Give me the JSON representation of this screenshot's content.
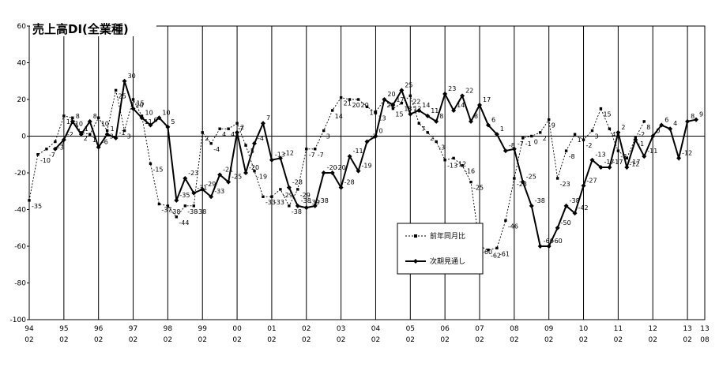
{
  "chart_data": {
    "type": "line",
    "title": "売上高DI(全業種)",
    "ylim": [
      -100,
      60
    ],
    "yticks": [
      60,
      40,
      20,
      0,
      -20,
      -40,
      -60,
      -80,
      -100
    ],
    "year_ticks": [
      {
        "year": "94",
        "month": "02"
      },
      {
        "year": "95",
        "month": "02"
      },
      {
        "year": "96",
        "month": "02"
      },
      {
        "year": "97",
        "month": "02"
      },
      {
        "year": "98",
        "month": "02"
      },
      {
        "year": "99",
        "month": "02"
      },
      {
        "year": "00",
        "month": "02"
      },
      {
        "year": "01",
        "month": "02"
      },
      {
        "year": "02",
        "month": "02"
      },
      {
        "year": "03",
        "month": "02"
      },
      {
        "year": "04",
        "month": "02"
      },
      {
        "year": "05",
        "month": "02"
      },
      {
        "year": "06",
        "month": "02"
      },
      {
        "year": "07",
        "month": "02"
      },
      {
        "year": "08",
        "month": "02"
      },
      {
        "year": "09",
        "month": "02"
      },
      {
        "year": "10",
        "month": "02"
      },
      {
        "year": "11",
        "month": "02"
      },
      {
        "year": "12",
        "month": "02"
      },
      {
        "year": "13",
        "month": "02"
      },
      {
        "year": "13",
        "month": "08"
      }
    ],
    "grid": "vertical",
    "legend_position": "bottom-center",
    "series": [
      {
        "name": "前年同月比",
        "style": "dashed-square",
        "color": "#000000",
        "values": [
          -35,
          -10,
          -7,
          -3,
          11,
          10,
          2,
          1,
          10,
          3,
          25,
          3,
          20,
          11,
          -15,
          -37,
          -38,
          -44,
          -38,
          -38,
          2,
          -4,
          4,
          4,
          7,
          -5,
          -19,
          -33,
          -33,
          -29,
          -38,
          -29,
          -7,
          -7,
          3,
          14,
          21,
          20,
          20,
          16,
          13,
          20,
          15,
          18,
          22,
          7,
          2,
          -3,
          -13,
          -12,
          -16,
          -25,
          -60,
          -62,
          -61,
          -46,
          -23,
          -1,
          0,
          2,
          9,
          -23,
          -8,
          1,
          -2,
          3,
          15,
          4,
          -8,
          -12,
          -1,
          8
        ]
      },
      {
        "name": "次期見通し",
        "style": "solid-diamond",
        "color": "#000000",
        "values": [
          -7,
          -2,
          8,
          1,
          8,
          -6,
          1,
          -1,
          30,
          15,
          10,
          6,
          10,
          5,
          -35,
          -23,
          -31,
          -29,
          -33,
          -21,
          -25,
          2,
          -20,
          -4,
          7,
          -13,
          -12,
          -28,
          -38,
          -39,
          -38,
          -20,
          -20,
          -28,
          -11,
          -19,
          -3,
          0,
          20,
          17,
          25,
          12,
          14,
          11,
          8,
          23,
          14,
          22,
          8,
          17,
          6,
          1,
          -8,
          -7,
          -25,
          -38,
          -60,
          -60,
          -50,
          -38,
          -42,
          -27,
          -13,
          -17,
          -17,
          2,
          -17,
          -2,
          -11,
          0,
          6,
          4,
          -12,
          8,
          9
        ]
      }
    ],
    "data_labels_prev": [
      "-35",
      "-10",
      "-7",
      "-3",
      "11",
      "10",
      "2",
      "1",
      "10",
      "3",
      "25",
      "3",
      "20",
      "11",
      "-15",
      "-37",
      "-38",
      "-44",
      "-38",
      "-38",
      "2",
      "-4",
      "4",
      "4",
      "7",
      "-5",
      "-19",
      "-33",
      "-33",
      "-29",
      "-38",
      "-29",
      "-7",
      "-7",
      "3",
      "14",
      "21",
      "20",
      "20",
      "16",
      "13",
      "20",
      "15",
      "18",
      "22",
      "7",
      "2",
      "-3",
      "-13",
      "-12",
      "-16",
      "-25",
      "-60",
      "-62",
      "-61",
      "-46",
      "-23",
      "-1",
      "0",
      "2",
      "9",
      "-23",
      "-8",
      "1",
      "-2",
      "3",
      "15",
      "4",
      "-8",
      "-12",
      "-1",
      "8"
    ],
    "data_labels_next": [
      "-7",
      "-2",
      "8",
      "1",
      "8",
      "-6",
      "1",
      "-1",
      "30",
      "15",
      "10",
      "6",
      "10",
      "5",
      "-35",
      "-23",
      "-31",
      "-29",
      "-33",
      "-21",
      "-25",
      "2",
      "-20",
      "-4",
      "7",
      "-13",
      "-12",
      "-28",
      "-38",
      "-39",
      "-38",
      "-20",
      "-20",
      "-28",
      "-11",
      "-19",
      "-3",
      "0",
      "20",
      "17",
      "25",
      "12",
      "14",
      "11",
      "8",
      "23",
      "14",
      "22",
      "8",
      "17",
      "6",
      "1",
      "-8",
      "-7",
      "-25",
      "-38",
      "-60",
      "-60",
      "-50",
      "-38",
      "-42",
      "-27",
      "-13",
      "-17",
      "-17",
      "2",
      "-17",
      "-2",
      "-11",
      "0",
      "6",
      "4",
      "-12",
      "8",
      "9"
    ]
  }
}
